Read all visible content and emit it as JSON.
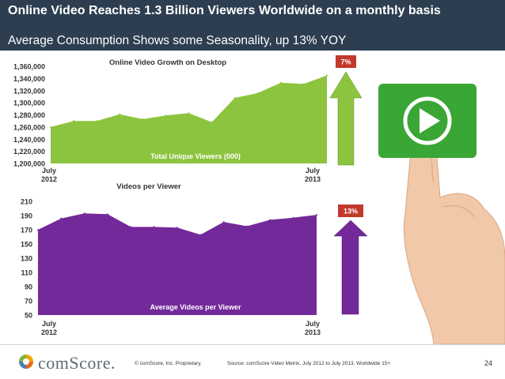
{
  "slide": {
    "title": "Online Video Reaches 1.3 Billion Viewers Worldwide on a monthly basis",
    "subtitle": "Average Consumption Shows some Seasonality, up 13% YOY"
  },
  "colors": {
    "title_bar": "#2c3e50",
    "top_area": "#8cc43f",
    "bottom_area": "#74299a",
    "growth_arrow": "#8cc43f",
    "growth_arrow_bottom": "#74299a",
    "badge": "#c0392b",
    "play_button": "#3aa635"
  },
  "icons": [
    "play-button-icon",
    "pointing-hand-icon",
    "up-arrow-icon",
    "comscore-logo-icon"
  ],
  "chart_data": [
    {
      "type": "area",
      "title": "Online Video Growth on Desktop",
      "series": [
        {
          "name": "Total Unique Viewers (000)",
          "values": [
            1260000,
            1270000,
            1270000,
            1281000,
            1273000,
            1279000,
            1283000,
            1268000,
            1308000,
            1316000,
            1333000,
            1331000,
            1345000
          ]
        }
      ],
      "x_tick_labels": [
        {
          "line1": "July",
          "line2": "2012"
        },
        {
          "line1": "July",
          "line2": "2013"
        }
      ],
      "y_ticks": [
        "1,200,000",
        "1,220,000",
        "1,240,000",
        "1,260,000",
        "1,280,000",
        "1,300,000",
        "1,320,000",
        "1,340,000",
        "1,360,000"
      ],
      "ylim": [
        1200000,
        1360000
      ],
      "growth_label": "7%",
      "grid": false
    },
    {
      "type": "area",
      "title": "Videos per Viewer",
      "series": [
        {
          "name": "Average Videos per Viewer",
          "values": [
            170,
            186,
            193,
            192,
            174,
            174,
            173,
            163,
            181,
            175,
            184,
            187,
            191
          ]
        }
      ],
      "x_tick_labels": [
        {
          "line1": "July",
          "line2": "2012"
        },
        {
          "line1": "July",
          "line2": "2013"
        }
      ],
      "y_ticks": [
        "50",
        "70",
        "90",
        "110",
        "130",
        "150",
        "170",
        "190",
        "210"
      ],
      "ylim": [
        50,
        210
      ],
      "growth_label": "13%",
      "grid": false
    }
  ],
  "footer": {
    "logo_text": "comScore.",
    "copyright": "© comScore, Inc.    Proprietary.",
    "source": "Source: comScore Video Metrix, July 2012 to July 2013, Worldwide 15+",
    "page_number": "24"
  }
}
